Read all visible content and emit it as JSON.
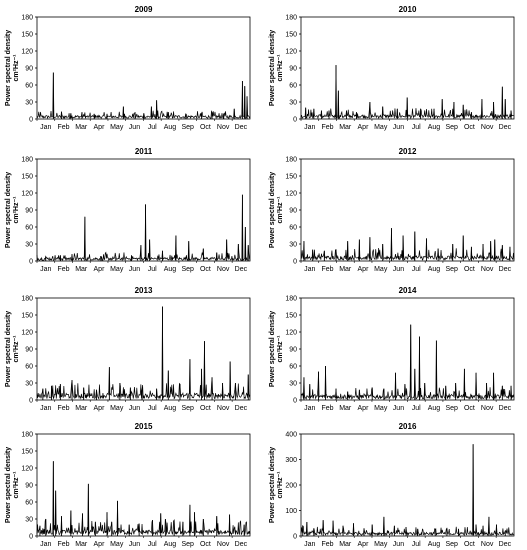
{
  "chart_data": [
    {
      "type": "line",
      "title": "2009",
      "ylabel": "Power spectral density",
      "yunit": "cm²Hz⁻¹",
      "ylim": [
        0,
        180
      ],
      "yticks": [
        0,
        30,
        60,
        90,
        120,
        150,
        180
      ],
      "xticks": [
        "Jan",
        "Feb",
        "Mar",
        "Apr",
        "May",
        "Jun",
        "Jul",
        "Aug",
        "Sep",
        "Oct",
        "Nov",
        "Dec"
      ],
      "baseline": 4,
      "peaks": [
        [
          28,
          82
        ],
        [
          42,
          13
        ],
        [
          58,
          10
        ],
        [
          77,
          12
        ],
        [
          98,
          9
        ],
        [
          120,
          9
        ],
        [
          148,
          22
        ],
        [
          168,
          12
        ],
        [
          183,
          10
        ],
        [
          196,
          22
        ],
        [
          205,
          33
        ],
        [
          225,
          12
        ],
        [
          255,
          9
        ],
        [
          282,
          10
        ],
        [
          300,
          12
        ],
        [
          320,
          9
        ],
        [
          338,
          18
        ],
        [
          352,
          67
        ],
        [
          356,
          58
        ],
        [
          360,
          40
        ]
      ]
    },
    {
      "type": "line",
      "title": "2010",
      "ylabel": "Power spectral density",
      "yunit": "cm²Hz⁻¹",
      "ylim": [
        0,
        180
      ],
      "yticks": [
        0,
        30,
        60,
        90,
        120,
        150,
        180
      ],
      "xticks": [
        "Jan",
        "Feb",
        "Mar",
        "Apr",
        "May",
        "Jun",
        "Jul",
        "Aug",
        "Sep",
        "Oct",
        "Nov",
        "Dec"
      ],
      "baseline": 5,
      "peaks": [
        [
          8,
          20
        ],
        [
          22,
          18
        ],
        [
          35,
          15
        ],
        [
          48,
          15
        ],
        [
          60,
          95
        ],
        [
          64,
          50
        ],
        [
          78,
          15
        ],
        [
          95,
          12
        ],
        [
          118,
          30
        ],
        [
          140,
          22
        ],
        [
          165,
          18
        ],
        [
          182,
          38
        ],
        [
          205,
          18
        ],
        [
          228,
          18
        ],
        [
          242,
          35
        ],
        [
          262,
          30
        ],
        [
          278,
          25
        ],
        [
          292,
          12
        ],
        [
          310,
          35
        ],
        [
          330,
          30
        ],
        [
          345,
          57
        ],
        [
          350,
          35
        ],
        [
          360,
          15
        ]
      ]
    },
    {
      "type": "line",
      "title": "2011",
      "ylabel": "Power spectral density",
      "yunit": "cm²Hz⁻¹",
      "ylim": [
        0,
        180
      ],
      "yticks": [
        0,
        30,
        60,
        90,
        120,
        150,
        180
      ],
      "xticks": [
        "Jan",
        "Feb",
        "Mar",
        "Apr",
        "May",
        "Jun",
        "Jul",
        "Aug",
        "Sep",
        "Oct",
        "Nov",
        "Dec"
      ],
      "baseline": 4,
      "peaks": [
        [
          15,
          8
        ],
        [
          40,
          10
        ],
        [
          60,
          12
        ],
        [
          82,
          78
        ],
        [
          110,
          8
        ],
        [
          135,
          8
        ],
        [
          162,
          10
        ],
        [
          178,
          28
        ],
        [
          186,
          100
        ],
        [
          193,
          38
        ],
        [
          215,
          18
        ],
        [
          238,
          45
        ],
        [
          260,
          35
        ],
        [
          285,
          22
        ],
        [
          308,
          15
        ],
        [
          325,
          38
        ],
        [
          345,
          30
        ],
        [
          352,
          117
        ],
        [
          357,
          60
        ],
        [
          362,
          28
        ]
      ]
    },
    {
      "type": "line",
      "title": "2012",
      "ylabel": "Power spectral density",
      "yunit": "cm²Hz⁻¹",
      "ylim": [
        0,
        180
      ],
      "yticks": [
        0,
        30,
        60,
        90,
        120,
        150,
        180
      ],
      "xticks": [
        "Jan",
        "Feb",
        "Mar",
        "Apr",
        "May",
        "Jun",
        "Jul",
        "Aug",
        "Sep",
        "Oct",
        "Nov",
        "Dec"
      ],
      "baseline": 6,
      "peaks": [
        [
          5,
          35
        ],
        [
          20,
          20
        ],
        [
          40,
          18
        ],
        [
          60,
          20
        ],
        [
          80,
          35
        ],
        [
          100,
          38
        ],
        [
          118,
          42
        ],
        [
          140,
          30
        ],
        [
          155,
          58
        ],
        [
          175,
          45
        ],
        [
          195,
          52
        ],
        [
          215,
          40
        ],
        [
          235,
          22
        ],
        [
          260,
          30
        ],
        [
          278,
          45
        ],
        [
          292,
          25
        ],
        [
          312,
          30
        ],
        [
          325,
          35
        ],
        [
          332,
          38
        ],
        [
          345,
          28
        ],
        [
          358,
          25
        ]
      ]
    },
    {
      "type": "line",
      "title": "2013",
      "ylabel": "Power spectral density",
      "yunit": "cm²Hz⁻¹",
      "ylim": [
        0,
        180
      ],
      "yticks": [
        0,
        30,
        60,
        90,
        120,
        150,
        180
      ],
      "xticks": [
        "Jan",
        "Feb",
        "Mar",
        "Apr",
        "May",
        "Jun",
        "Jul",
        "Aug",
        "Sep",
        "Oct",
        "Nov",
        "Dec"
      ],
      "baseline": 8,
      "peaks": [
        [
          10,
          20
        ],
        [
          25,
          25
        ],
        [
          40,
          28
        ],
        [
          60,
          35
        ],
        [
          80,
          22
        ],
        [
          102,
          18
        ],
        [
          124,
          58
        ],
        [
          142,
          30
        ],
        [
          160,
          22
        ],
        [
          180,
          18
        ],
        [
          205,
          20
        ],
        [
          215,
          165
        ],
        [
          225,
          52
        ],
        [
          245,
          28
        ],
        [
          262,
          72
        ],
        [
          282,
          55
        ],
        [
          287,
          104
        ],
        [
          300,
          40
        ],
        [
          318,
          30
        ],
        [
          331,
          68
        ],
        [
          340,
          30
        ],
        [
          362,
          45
        ]
      ]
    },
    {
      "type": "line",
      "title": "2014",
      "ylabel": "Power spectral density",
      "yunit": "cm²Hz⁻¹",
      "ylim": [
        0,
        180
      ],
      "yticks": [
        0,
        30,
        60,
        90,
        120,
        150,
        180
      ],
      "xticks": [
        "Jan",
        "Feb",
        "Mar",
        "Apr",
        "May",
        "Jun",
        "Jul",
        "Aug",
        "Sep",
        "Oct",
        "Nov",
        "Dec"
      ],
      "baseline": 6,
      "peaks": [
        [
          5,
          40
        ],
        [
          15,
          28
        ],
        [
          30,
          50
        ],
        [
          42,
          60
        ],
        [
          60,
          20
        ],
        [
          80,
          15
        ],
        [
          100,
          18
        ],
        [
          122,
          22
        ],
        [
          142,
          20
        ],
        [
          162,
          48
        ],
        [
          178,
          28
        ],
        [
          188,
          133
        ],
        [
          195,
          55
        ],
        [
          203,
          112
        ],
        [
          212,
          30
        ],
        [
          232,
          105
        ],
        [
          248,
          25
        ],
        [
          265,
          30
        ],
        [
          280,
          55
        ],
        [
          300,
          48
        ],
        [
          318,
          30
        ],
        [
          330,
          48
        ],
        [
          345,
          25
        ],
        [
          360,
          25
        ]
      ]
    },
    {
      "type": "line",
      "title": "2015",
      "ylabel": "Power spectral density",
      "yunit": "cm²Hz⁻¹",
      "ylim": [
        0,
        180
      ],
      "yticks": [
        0,
        30,
        60,
        90,
        120,
        150,
        180
      ],
      "xticks": [
        "Jan",
        "Feb",
        "Mar",
        "Apr",
        "May",
        "Jun",
        "Jul",
        "Aug",
        "Sep",
        "Oct",
        "Nov",
        "Dec"
      ],
      "baseline": 7,
      "peaks": [
        [
          5,
          18
        ],
        [
          15,
          30
        ],
        [
          28,
          132
        ],
        [
          32,
          80
        ],
        [
          42,
          35
        ],
        [
          58,
          45
        ],
        [
          78,
          40
        ],
        [
          88,
          92
        ],
        [
          100,
          25
        ],
        [
          120,
          42
        ],
        [
          128,
          25
        ],
        [
          138,
          62
        ],
        [
          158,
          20
        ],
        [
          175,
          22
        ],
        [
          198,
          28
        ],
        [
          212,
          40
        ],
        [
          220,
          30
        ],
        [
          235,
          28
        ],
        [
          250,
          25
        ],
        [
          262,
          55
        ],
        [
          270,
          42
        ],
        [
          285,
          30
        ],
        [
          308,
          35
        ],
        [
          330,
          38
        ],
        [
          355,
          20
        ]
      ]
    },
    {
      "type": "line",
      "title": "2016",
      "ylabel": "Power spectral density",
      "yunit": "cm²Hz⁻¹",
      "ylim": [
        0,
        400
      ],
      "yticks": [
        0,
        100,
        200,
        300,
        400
      ],
      "xticks": [
        "Jan",
        "Feb",
        "Mar",
        "Apr",
        "May",
        "Jun",
        "Jul",
        "Aug",
        "Sep",
        "Oct",
        "Nov",
        "Dec"
      ],
      "baseline": 10,
      "peaks": [
        [
          3,
          40
        ],
        [
          10,
          55
        ],
        [
          22,
          30
        ],
        [
          38,
          62
        ],
        [
          55,
          60
        ],
        [
          72,
          40
        ],
        [
          90,
          50
        ],
        [
          108,
          30
        ],
        [
          122,
          45
        ],
        [
          142,
          75
        ],
        [
          160,
          40
        ],
        [
          180,
          35
        ],
        [
          200,
          28
        ],
        [
          230,
          25
        ],
        [
          250,
          30
        ],
        [
          270,
          28
        ],
        [
          295,
          360
        ],
        [
          300,
          45
        ],
        [
          312,
          40
        ],
        [
          322,
          75
        ],
        [
          335,
          45
        ],
        [
          350,
          20
        ]
      ]
    }
  ]
}
